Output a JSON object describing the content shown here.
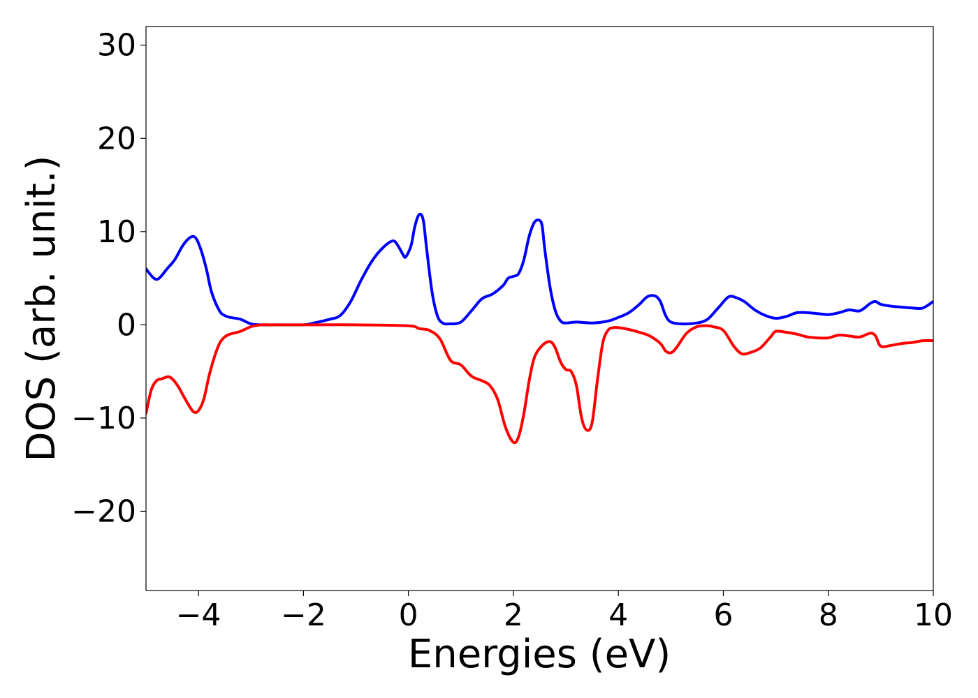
{
  "chart_data": {
    "type": "line",
    "title": "",
    "xlabel": "Energies (eV)",
    "ylabel": "DOS (arb. unit.)",
    "xlim": [
      -5,
      10
    ],
    "ylim": [
      -28.5,
      32
    ],
    "grid": false,
    "legend": "none",
    "x_ticks": [
      -4,
      -2,
      0,
      2,
      4,
      6,
      8,
      10
    ],
    "x_tick_labels": [
      "−4",
      "−2",
      "0",
      "2",
      "4",
      "6",
      "8",
      "10"
    ],
    "y_ticks": [
      -20,
      -10,
      0,
      10,
      20,
      30
    ],
    "y_tick_labels": [
      "−20",
      "−10",
      "0",
      "10",
      "20",
      "30"
    ],
    "series": [
      {
        "color": "#0000ff",
        "x": [
          -5.0,
          -4.85,
          -4.75,
          -4.6,
          -4.45,
          -4.3,
          -4.15,
          -4.05,
          -3.95,
          -3.85,
          -3.75,
          -3.6,
          -3.5,
          -3.4,
          -3.2,
          -3.0,
          -2.8,
          -2.5,
          -2.0,
          -1.8,
          -1.5,
          -1.3,
          -1.1,
          -0.9,
          -0.7,
          -0.5,
          -0.3,
          -0.2,
          -0.1,
          -0.05,
          0.05,
          0.12,
          0.2,
          0.28,
          0.35,
          0.45,
          0.55,
          0.65,
          0.8,
          1.0,
          1.2,
          1.4,
          1.6,
          1.8,
          1.9,
          2.0,
          2.1,
          2.2,
          2.3,
          2.4,
          2.5,
          2.55,
          2.6,
          2.7,
          2.8,
          2.9,
          3.0,
          3.2,
          3.5,
          3.8,
          4.0,
          4.2,
          4.4,
          4.55,
          4.7,
          4.8,
          4.9,
          5.0,
          5.2,
          5.5,
          5.7,
          5.9,
          6.1,
          6.25,
          6.4,
          6.6,
          6.8,
          7.0,
          7.2,
          7.4,
          7.6,
          7.8,
          8.0,
          8.2,
          8.4,
          8.6,
          8.8,
          8.9,
          9.0,
          9.2,
          9.4,
          9.6,
          9.8,
          10.0
        ],
        "y": [
          6.0,
          5.0,
          5.0,
          6.0,
          7.0,
          8.5,
          9.4,
          9.3,
          8.0,
          6.0,
          3.5,
          1.5,
          1.0,
          0.8,
          0.6,
          0.1,
          0.0,
          0.0,
          0.0,
          0.2,
          0.6,
          1.0,
          2.5,
          4.8,
          6.8,
          8.2,
          9.0,
          8.5,
          7.5,
          7.3,
          8.5,
          10.5,
          11.8,
          11.3,
          8.0,
          3.5,
          1.0,
          0.2,
          0.1,
          0.3,
          1.5,
          2.8,
          3.3,
          4.2,
          5.0,
          5.2,
          5.5,
          7.0,
          9.5,
          11.0,
          11.2,
          10.5,
          8.0,
          4.0,
          1.5,
          0.4,
          0.2,
          0.3,
          0.2,
          0.4,
          0.8,
          1.3,
          2.2,
          3.0,
          3.1,
          2.5,
          1.0,
          0.3,
          0.1,
          0.2,
          0.6,
          1.8,
          3.0,
          2.9,
          2.5,
          1.6,
          1.0,
          0.7,
          0.9,
          1.3,
          1.3,
          1.2,
          1.1,
          1.3,
          1.6,
          1.5,
          2.3,
          2.5,
          2.2,
          2.0,
          1.9,
          1.8,
          1.8,
          2.5
        ]
      },
      {
        "color": "#ff0000",
        "x": [
          -5.0,
          -4.9,
          -4.8,
          -4.7,
          -4.55,
          -4.4,
          -4.25,
          -4.1,
          -4.0,
          -3.9,
          -3.8,
          -3.7,
          -3.6,
          -3.5,
          -3.4,
          -3.2,
          -3.0,
          -2.8,
          -2.6,
          -2.0,
          -1.0,
          0.0,
          0.2,
          0.4,
          0.6,
          0.8,
          1.0,
          1.2,
          1.4,
          1.55,
          1.7,
          1.85,
          2.0,
          2.1,
          2.2,
          2.3,
          2.4,
          2.55,
          2.7,
          2.8,
          2.9,
          3.0,
          3.1,
          3.2,
          3.3,
          3.4,
          3.5,
          3.6,
          3.7,
          3.8,
          3.9,
          4.0,
          4.2,
          4.4,
          4.6,
          4.8,
          4.9,
          5.0,
          5.1,
          5.3,
          5.5,
          5.7,
          5.8,
          6.0,
          6.2,
          6.35,
          6.5,
          6.7,
          6.9,
          7.0,
          7.2,
          7.4,
          7.6,
          7.8,
          8.0,
          8.2,
          8.4,
          8.6,
          8.8,
          8.9,
          9.0,
          9.2,
          9.4,
          9.6,
          9.8,
          10.0
        ],
        "y": [
          -9.5,
          -7.0,
          -6.0,
          -5.8,
          -5.6,
          -6.5,
          -8.0,
          -9.3,
          -9.2,
          -8.0,
          -5.5,
          -3.5,
          -2.0,
          -1.3,
          -1.0,
          -0.7,
          -0.2,
          0.0,
          0.0,
          0.0,
          0.0,
          -0.1,
          -0.4,
          -0.6,
          -1.5,
          -3.8,
          -4.3,
          -5.5,
          -6.0,
          -6.5,
          -8.0,
          -11.0,
          -12.6,
          -12.0,
          -9.5,
          -6.0,
          -3.5,
          -2.2,
          -1.8,
          -2.5,
          -4.0,
          -4.8,
          -5.0,
          -6.5,
          -10.0,
          -11.3,
          -10.5,
          -6.0,
          -2.0,
          -0.6,
          -0.3,
          -0.3,
          -0.5,
          -0.8,
          -1.2,
          -2.0,
          -2.8,
          -3.0,
          -2.5,
          -0.9,
          -0.2,
          -0.1,
          -0.2,
          -0.6,
          -2.3,
          -3.1,
          -3.0,
          -2.5,
          -1.3,
          -0.7,
          -0.8,
          -1.0,
          -1.3,
          -1.4,
          -1.4,
          -1.1,
          -1.2,
          -1.3,
          -0.9,
          -1.2,
          -2.3,
          -2.2,
          -2.0,
          -1.9,
          -1.7,
          -1.7
        ]
      }
    ]
  }
}
